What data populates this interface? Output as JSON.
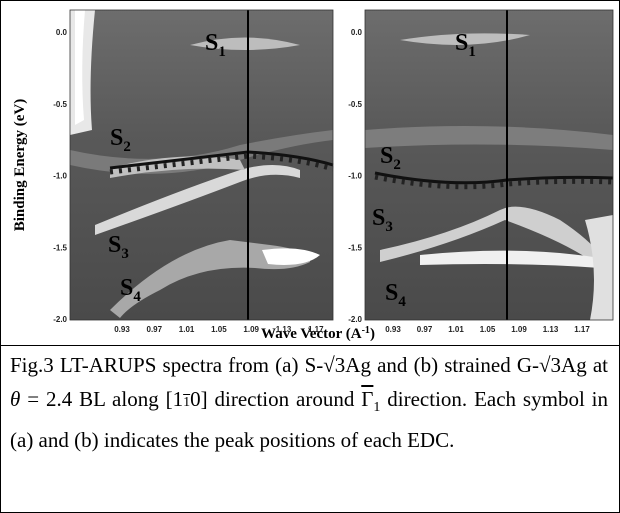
{
  "figure": {
    "y_label": "Binding Energy (eV)",
    "x_label": "Wave Vector (A",
    "x_label_sup": "-1",
    "x_label_end": ")",
    "panels": [
      {
        "yticks": [
          "0.0",
          "-0.5",
          "-1.0",
          "-1.5",
          "-2.0"
        ],
        "xticks": [
          "0.93",
          "0.97",
          "1.01",
          "1.05",
          "1.09",
          "1.13",
          "1.17"
        ],
        "bands": [
          {
            "name": "S",
            "sub": "1"
          },
          {
            "name": "S",
            "sub": "2"
          },
          {
            "name": "S",
            "sub": "3"
          },
          {
            "name": "S",
            "sub": "4"
          }
        ]
      },
      {
        "yticks": [
          "0.0",
          "-0.5",
          "-1.0",
          "-1.5",
          "-2.0"
        ],
        "xticks": [
          "0.93",
          "0.97",
          "1.01",
          "1.05",
          "1.09",
          "1.13",
          "1.17"
        ],
        "bands": [
          {
            "name": "S",
            "sub": "1"
          },
          {
            "name": "S",
            "sub": "2"
          },
          {
            "name": "S",
            "sub": "3"
          },
          {
            "name": "S",
            "sub": "4"
          }
        ]
      }
    ]
  },
  "caption": {
    "parts": [
      "Fig.3  LT-ARUPS spectra from (a) S-√3Ag and (b) strained G-√3Ag at ",
      "θ",
      " = 2.4 BL along [1",
      "1",
      "0] direction around ",
      "Γ",
      "1",
      " direction. Each symbol in (a) and (b) indicates the peak positions of each EDC."
    ]
  }
}
